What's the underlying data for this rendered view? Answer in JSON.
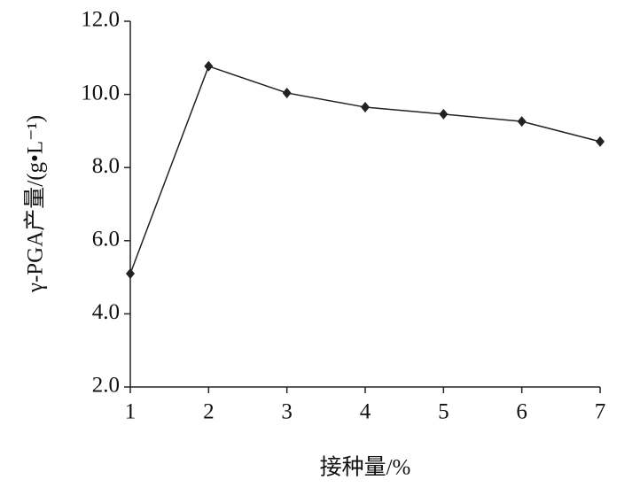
{
  "chart_data": {
    "type": "line",
    "xlabel": "接种量/%",
    "ylabel": "γ-PGA产量/(g•L⁻¹)",
    "x": [
      1,
      2,
      3,
      4,
      5,
      6,
      7
    ],
    "series": [
      {
        "color": "#222222",
        "values": [
          5.1,
          10.77,
          10.04,
          9.65,
          9.46,
          9.26,
          8.71
        ]
      }
    ],
    "xlim": [
      1,
      7
    ],
    "xticks": [
      1,
      2,
      3,
      4,
      5,
      6,
      7
    ],
    "ylim": [
      2,
      12
    ],
    "yticks": [
      {
        "value": 2,
        "label": "2.0"
      },
      {
        "value": 4,
        "label": "4.0"
      },
      {
        "value": 6,
        "label": "6.0"
      },
      {
        "value": 8,
        "label": "8.0"
      },
      {
        "value": 10,
        "label": "10.0"
      },
      {
        "value": 12,
        "label": "12.0"
      }
    ]
  }
}
